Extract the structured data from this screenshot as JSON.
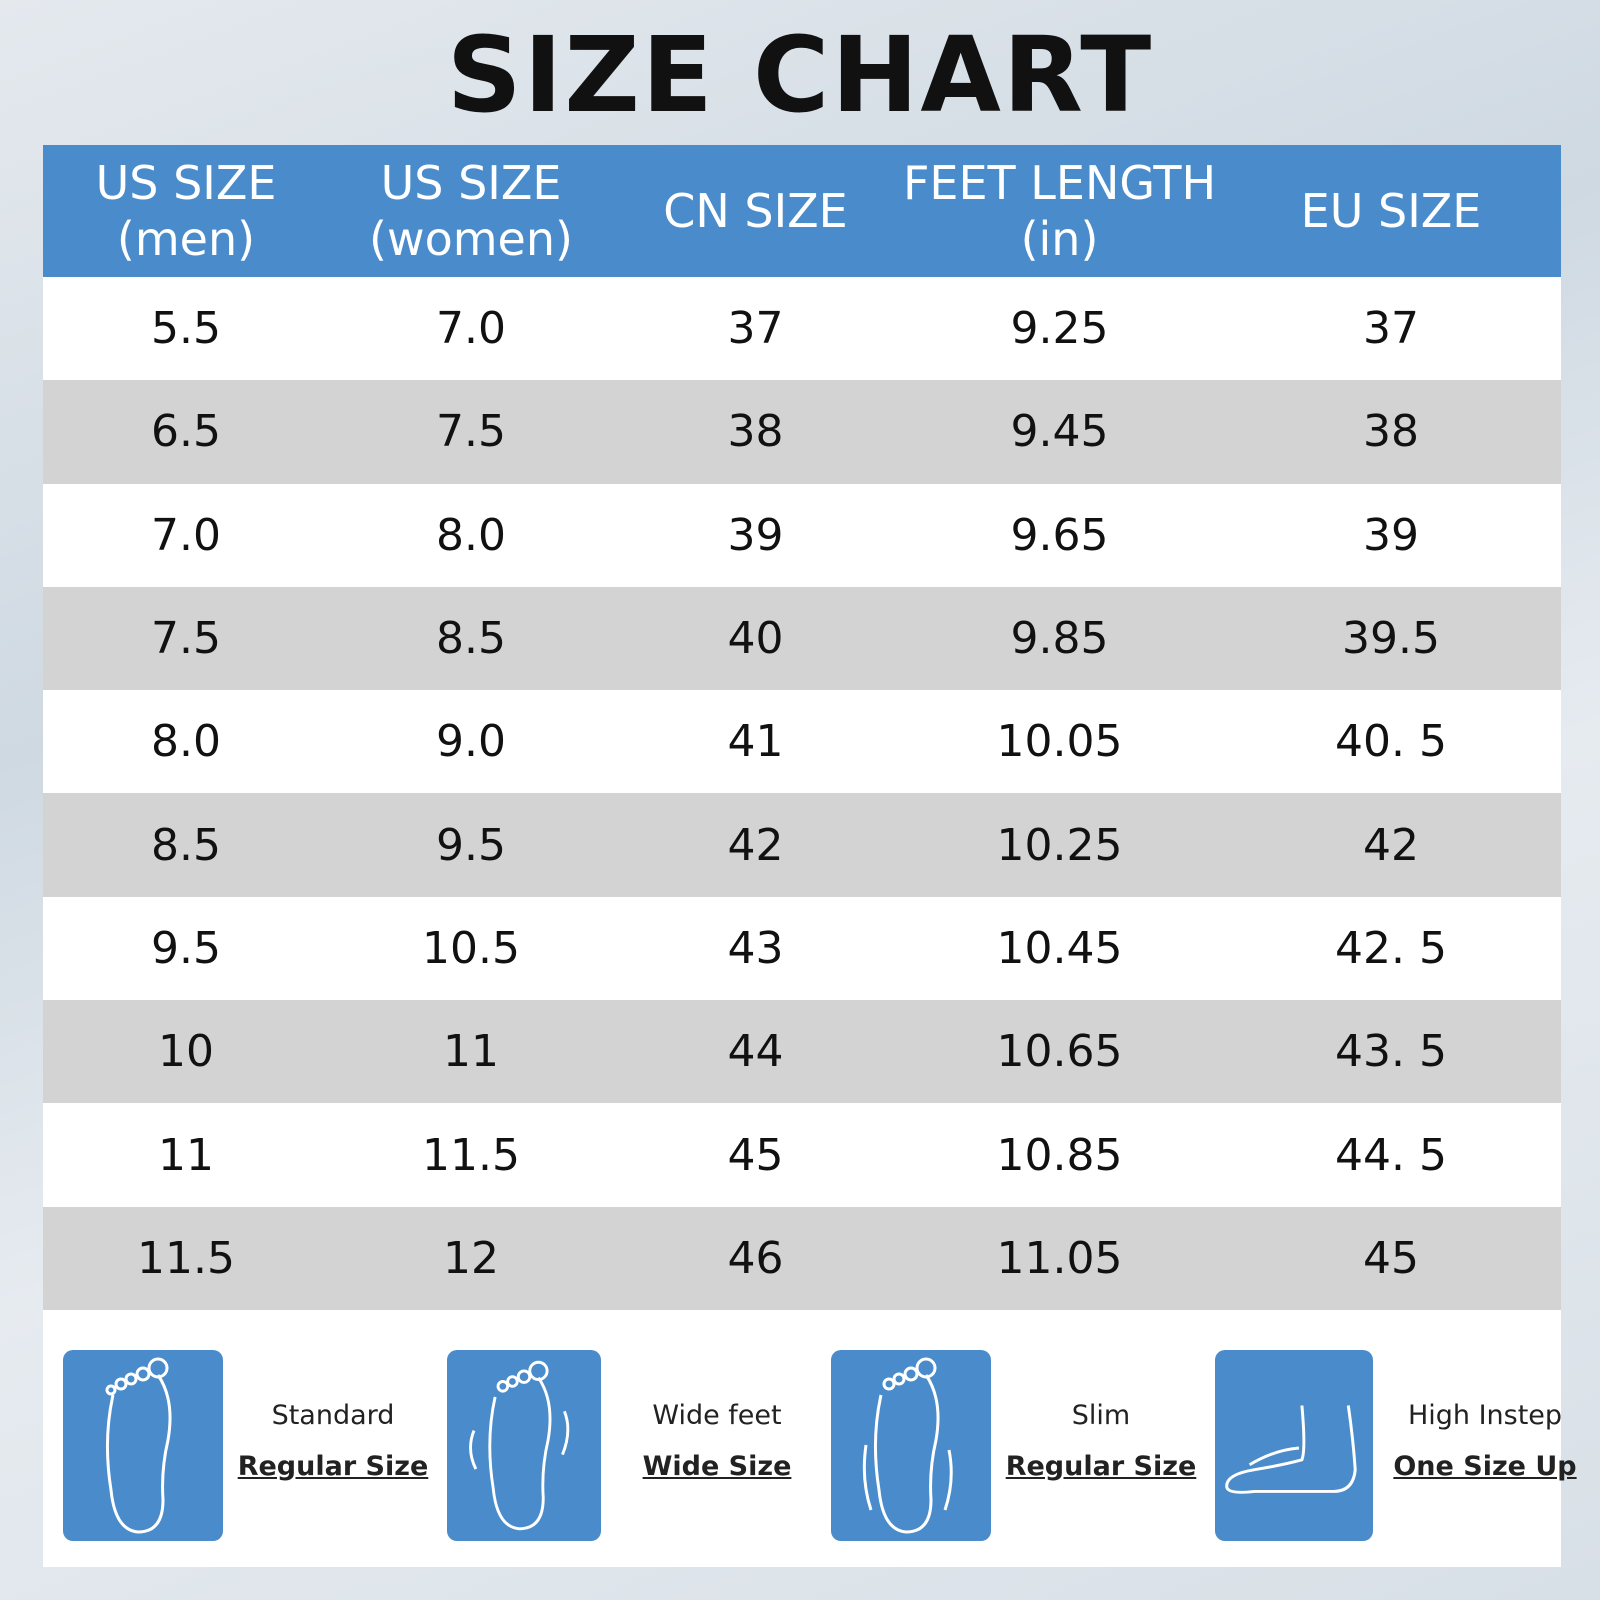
{
  "title": "SIZE CHART",
  "table": {
    "headers": [
      [
        "US SIZE",
        "(men)"
      ],
      [
        "US SIZE",
        "(women)"
      ],
      [
        "CN SIZE"
      ],
      [
        "FEET LENGTH",
        "(in)"
      ],
      [
        "EU SIZE"
      ]
    ],
    "rows": [
      [
        "5.5",
        "7.0",
        "37",
        "9.25",
        "37"
      ],
      [
        "6.5",
        "7.5",
        "38",
        "9.45",
        "38"
      ],
      [
        "7.0",
        "8.0",
        "39",
        "9.65",
        "39"
      ],
      [
        "7.5",
        "8.5",
        "40",
        "9.85",
        "39.5"
      ],
      [
        "8.0",
        "9.0",
        "41",
        "10.05",
        "40. 5"
      ],
      [
        "8.5",
        "9.5",
        "42",
        "10.25",
        "42"
      ],
      [
        "9.5",
        "10.5",
        "43",
        "10.45",
        "42. 5"
      ],
      [
        "10",
        "11",
        "44",
        "10.65",
        "43. 5"
      ],
      [
        "11",
        "11.5",
        "45",
        "10.85",
        "44. 5"
      ],
      [
        "11.5",
        "12",
        "46",
        "11.05",
        "45"
      ]
    ]
  },
  "fit_guide": [
    {
      "label": "Standard",
      "recommendation": "Regular Size"
    },
    {
      "label": "Wide feet",
      "recommendation": "Wide Size"
    },
    {
      "label": "Slim",
      "recommendation": "Regular Size"
    },
    {
      "label": "High Instep",
      "recommendation": "One Size Up"
    }
  ]
}
